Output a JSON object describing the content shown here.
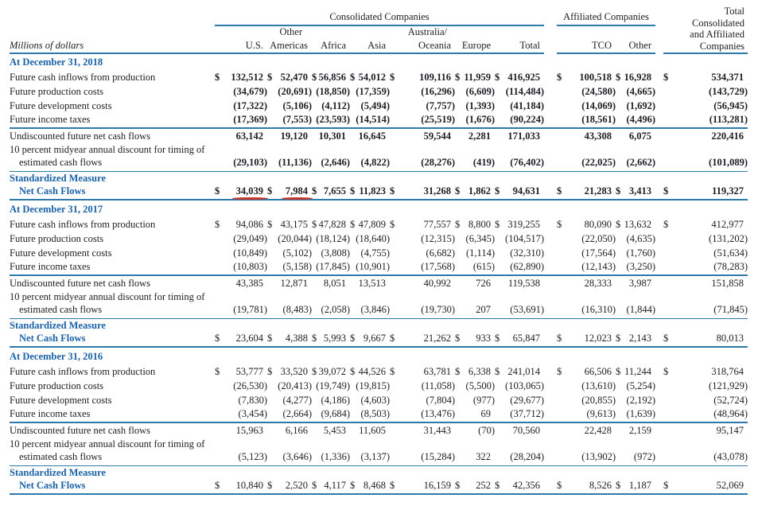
{
  "table": {
    "unit_label": "Millions of dollars",
    "group_headers": {
      "consolidated": "Consolidated Companies",
      "affiliated": "Affiliated Companies",
      "grand_total_lines": [
        "Total",
        "Consolidated",
        "and Affiliated",
        "Companies"
      ]
    },
    "column_headers": {
      "us": "U.S.",
      "other_americas": [
        "Other",
        "Americas"
      ],
      "africa": "Africa",
      "asia": "Asia",
      "australia_oceania": [
        "Australia/",
        "Oceania"
      ],
      "europe": "Europe",
      "total": "Total",
      "tco": "TCO",
      "other": "Other"
    },
    "sections": [
      {
        "title": "At December 31, 2018",
        "bold_values": true,
        "rows": [
          {
            "label": "Future cash inflows from production",
            "dollar": true,
            "values": [
              "132,512",
              "52,470",
              "56,856",
              "54,012",
              "109,116",
              "11,959",
              "416,925",
              "100,518",
              "16,928",
              "534,371"
            ]
          },
          {
            "label": "Future production costs",
            "values": [
              "(34,679)",
              "(20,691)",
              "(18,850)",
              "(17,359)",
              "(16,296)",
              "(6,609)",
              "(114,484)",
              "(24,580)",
              "(4,665)",
              "(143,729)"
            ]
          },
          {
            "label": "Future development costs",
            "values": [
              "(17,322)",
              "(5,106)",
              "(4,112)",
              "(5,494)",
              "(7,757)",
              "(1,393)",
              "(41,184)",
              "(14,069)",
              "(1,692)",
              "(56,945)"
            ]
          },
          {
            "label": "Future income taxes",
            "rule_after": "thick",
            "values": [
              "(17,369)",
              "(7,553)",
              "(23,593)",
              "(14,514)",
              "(25,519)",
              "(1,676)",
              "(90,224)",
              "(18,561)",
              "(4,496)",
              "(113,281)"
            ]
          },
          {
            "label": "Undiscounted future net cash flows",
            "values": [
              "63,142",
              "19,120",
              "10,301",
              "16,645",
              "59,544",
              "2,281",
              "171,033",
              "43,308",
              "6,075",
              "220,416"
            ]
          },
          {
            "label": "10 percent midyear annual discount for timing of",
            "label2": "estimated cash flows",
            "rule_after": "thin",
            "values": [
              "(29,103)",
              "(11,136)",
              "(2,646)",
              "(4,822)",
              "(28,276)",
              "(419)",
              "(76,402)",
              "(22,025)",
              "(2,662)",
              "(101,089)"
            ]
          },
          {
            "label": "Standardized Measure",
            "label2": "Net Cash Flows",
            "measure": true,
            "dollar": true,
            "rule_after": "thick",
            "red_underline": [
              0,
              1
            ],
            "values": [
              "34,039",
              "7,984",
              "7,655",
              "11,823",
              "31,268",
              "1,862",
              "94,631",
              "21,283",
              "3,413",
              "119,327"
            ]
          }
        ]
      },
      {
        "title": "At December 31, 2017",
        "bold_values": false,
        "rows": [
          {
            "label": "Future cash inflows from production",
            "dollar": true,
            "values": [
              "94,086",
              "43,175",
              "47,828",
              "47,809",
              "77,557",
              "8,800",
              "319,255",
              "80,090",
              "13,632",
              "412,977"
            ]
          },
          {
            "label": "Future production costs",
            "values": [
              "(29,049)",
              "(20,044)",
              "(18,124)",
              "(18,640)",
              "(12,315)",
              "(6,345)",
              "(104,517)",
              "(22,050)",
              "(4,635)",
              "(131,202)"
            ]
          },
          {
            "label": "Future development costs",
            "values": [
              "(10,849)",
              "(5,102)",
              "(3,808)",
              "(4,755)",
              "(6,682)",
              "(1,114)",
              "(32,310)",
              "(17,564)",
              "(1,760)",
              "(51,634)"
            ]
          },
          {
            "label": "Future income taxes",
            "rule_after": "thick",
            "values": [
              "(10,803)",
              "(5,158)",
              "(17,845)",
              "(10,901)",
              "(17,568)",
              "(615)",
              "(62,890)",
              "(12,143)",
              "(3,250)",
              "(78,283)"
            ]
          },
          {
            "label": "Undiscounted future net cash flows",
            "values": [
              "43,385",
              "12,871",
              "8,051",
              "13,513",
              "40,992",
              "726",
              "119,538",
              "28,333",
              "3,987",
              "151,858"
            ]
          },
          {
            "label": "10 percent midyear annual discount for timing of",
            "label2": "estimated cash flows",
            "rule_after": "thin",
            "values": [
              "(19,781)",
              "(8,483)",
              "(2,058)",
              "(3,846)",
              "(19,730)",
              "207",
              "(53,691)",
              "(16,310)",
              "(1,844)",
              "(71,845)"
            ]
          },
          {
            "label": "Standardized Measure",
            "label2": "Net Cash Flows",
            "measure": true,
            "dollar": true,
            "rule_after": "thick",
            "values": [
              "23,604",
              "4,388",
              "5,993",
              "9,667",
              "21,262",
              "933",
              "65,847",
              "12,023",
              "2,143",
              "80,013"
            ]
          }
        ]
      },
      {
        "title": "At December 31, 2016",
        "bold_values": false,
        "rows": [
          {
            "label": "Future cash inflows from production",
            "dollar": true,
            "values": [
              "53,777",
              "33,520",
              "39,072",
              "44,526",
              "63,781",
              "6,338",
              "241,014",
              "66,506",
              "11,244",
              "318,764"
            ]
          },
          {
            "label": "Future production costs",
            "values": [
              "(26,530)",
              "(20,413)",
              "(19,749)",
              "(19,815)",
              "(11,058)",
              "(5,500)",
              "(103,065)",
              "(13,610)",
              "(5,254)",
              "(121,929)"
            ]
          },
          {
            "label": "Future development costs",
            "values": [
              "(7,830)",
              "(4,277)",
              "(4,186)",
              "(4,603)",
              "(7,804)",
              "(977)",
              "(29,677)",
              "(20,855)",
              "(2,192)",
              "(52,724)"
            ]
          },
          {
            "label": "Future income taxes",
            "rule_after": "thick",
            "values": [
              "(3,454)",
              "(2,664)",
              "(9,684)",
              "(8,503)",
              "(13,476)",
              "69",
              "(37,712)",
              "(9,613)",
              "(1,639)",
              "(48,964)"
            ]
          },
          {
            "label": "Undiscounted future net cash flows",
            "values": [
              "15,963",
              "6,166",
              "5,453",
              "11,605",
              "31,443",
              "(70)",
              "70,560",
              "22,428",
              "2,159",
              "95,147"
            ]
          },
          {
            "label": "10 percent midyear annual discount for timing of",
            "label2": "estimated cash flows",
            "rule_after": "thin",
            "values": [
              "(5,123)",
              "(3,646)",
              "(1,336)",
              "(3,137)",
              "(15,284)",
              "322",
              "(28,204)",
              "(13,902)",
              "(972)",
              "(43,078)"
            ]
          },
          {
            "label": "Standardized Measure",
            "label2": "Net Cash Flows",
            "measure": true,
            "dollar": true,
            "rule_after": "thick",
            "values": [
              "10,840",
              "2,520",
              "4,117",
              "8,468",
              "16,159",
              "252",
              "42,356",
              "8,526",
              "1,187",
              "52,069"
            ]
          }
        ]
      }
    ]
  }
}
